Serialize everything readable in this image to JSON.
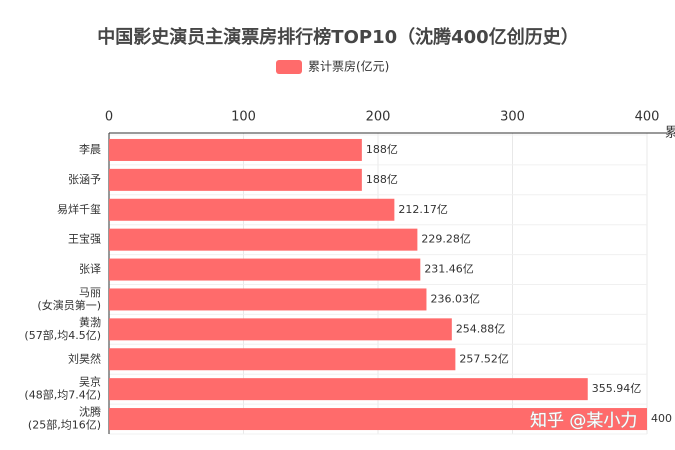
{
  "chart_data": {
    "type": "bar",
    "orientation": "horizontal",
    "title": "中国影史演员主演票房排行榜TOP10（沈腾400亿创历史）",
    "x_label": "累计票房(亿元)",
    "categories": [
      [
        "李晨"
      ],
      [
        "张涵予"
      ],
      [
        "易烊千玺"
      ],
      [
        "王宝强"
      ],
      [
        "张译"
      ],
      [
        "马丽",
        "(女演员第一)"
      ],
      [
        "黄渤",
        "(57部,均4.5亿)"
      ],
      [
        "刘昊然"
      ],
      [
        "吴京",
        "(48部,均7.4亿)"
      ],
      [
        "沈腾",
        "(25部,均16亿)"
      ]
    ],
    "series": [
      {
        "name": "累计票房(亿元)",
        "color": "#ff6b6b",
        "values": [
          188,
          188,
          212.17,
          229.28,
          231.46,
          236.03,
          254.88,
          257.52,
          355.94,
          400
        ],
        "value_labels": [
          "188亿",
          "188亿",
          "212.17亿",
          "229.28亿",
          "231.46亿",
          "236.03亿",
          "254.88亿",
          "257.52亿",
          "355.94亿",
          "400"
        ]
      }
    ],
    "xlim": [
      0,
      400
    ],
    "xticks": [
      0,
      100,
      200,
      300,
      400
    ],
    "grid": true,
    "watermark": "知乎 @某小力"
  }
}
